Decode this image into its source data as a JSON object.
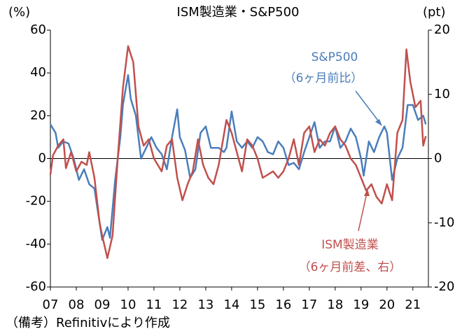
{
  "chart_data": {
    "type": "line",
    "title": "ISM製造業・S&P500",
    "y_label": "(%)",
    "y2_label": "(pt)",
    "footnote": "（備考）Refinitivにより作成",
    "annotations": [
      "S&P500",
      "（6ヶ月前比）",
      "ISM製造業",
      "（6ヶ月前差、右）"
    ],
    "xlim": [
      2007,
      2021.6
    ],
    "xticks": [
      {
        "value": 2007,
        "label": "07"
      },
      {
        "value": 2008,
        "label": "08"
      },
      {
        "value": 2009,
        "label": "09"
      },
      {
        "value": 2010,
        "label": "10"
      },
      {
        "value": 2011,
        "label": "11"
      },
      {
        "value": 2012,
        "label": "12"
      },
      {
        "value": 2013,
        "label": "13"
      },
      {
        "value": 2014,
        "label": "14"
      },
      {
        "value": 2015,
        "label": "15"
      },
      {
        "value": 2016,
        "label": "16"
      },
      {
        "value": 2017,
        "label": "17"
      },
      {
        "value": 2018,
        "label": "18"
      },
      {
        "value": 2019,
        "label": "19"
      },
      {
        "value": 2020,
        "label": "20"
      },
      {
        "value": 2021,
        "label": "21"
      }
    ],
    "ylim": [
      -60,
      60
    ],
    "yticks": [
      60,
      40,
      20,
      0,
      -20,
      -40,
      -60
    ],
    "y2lim": [
      -20,
      20
    ],
    "y2ticks": [
      20,
      10,
      0,
      -10,
      -20
    ],
    "series": [
      {
        "name": "S&P500",
        "color": "#4a7ebb",
        "x": [
          2007.0,
          2007.2,
          2007.3,
          2007.5,
          2007.7,
          2007.9,
          2008.1,
          2008.3,
          2008.5,
          2008.7,
          2008.9,
          2009.0,
          2009.2,
          2009.3,
          2009.5,
          2009.7,
          2009.8,
          2010.0,
          2010.1,
          2010.3,
          2010.5,
          2010.7,
          2010.9,
          2011.1,
          2011.3,
          2011.5,
          2011.7,
          2011.9,
          2012.0,
          2012.2,
          2012.4,
          2012.6,
          2012.8,
          2013.0,
          2013.2,
          2013.5,
          2013.7,
          2013.8,
          2014.0,
          2014.2,
          2014.4,
          2014.6,
          2014.8,
          2015.0,
          2015.2,
          2015.4,
          2015.6,
          2015.8,
          2016.0,
          2016.2,
          2016.4,
          2016.6,
          2016.8,
          2017.0,
          2017.2,
          2017.4,
          2017.6,
          2017.8,
          2018.0,
          2018.2,
          2018.4,
          2018.6,
          2018.8,
          2019.0,
          2019.1,
          2019.3,
          2019.5,
          2019.7,
          2019.9,
          2020.0,
          2020.2,
          2020.4,
          2020.6,
          2020.8,
          2021.0,
          2021.2,
          2021.4,
          2021.5
        ],
        "values": [
          16,
          12,
          5,
          8,
          7,
          0,
          -10,
          -5,
          -12,
          -14,
          -30,
          -38,
          -32,
          -37,
          -10,
          10,
          25,
          39,
          28,
          20,
          0,
          5,
          10,
          5,
          2,
          -5,
          10,
          23,
          10,
          4,
          -9,
          -5,
          12,
          15,
          5,
          5,
          3,
          5,
          22,
          8,
          5,
          8,
          5,
          10,
          8,
          3,
          2,
          8,
          5,
          -3,
          -2,
          -5,
          3,
          10,
          17,
          5,
          8,
          8,
          15,
          5,
          8,
          14,
          10,
          0,
          -8,
          8,
          3,
          10,
          15,
          12,
          -10,
          0,
          5,
          25,
          25,
          18,
          20,
          16
        ]
      },
      {
        "name": "ISM製造業",
        "color": "#c0504d",
        "axis": "y2",
        "x": [
          2007.0,
          2007.1,
          2007.3,
          2007.5,
          2007.6,
          2007.8,
          2008.0,
          2008.2,
          2008.4,
          2008.5,
          2008.7,
          2008.9,
          2009.0,
          2009.2,
          2009.4,
          2009.6,
          2009.8,
          2010.0,
          2010.2,
          2010.4,
          2010.6,
          2010.8,
          2011.0,
          2011.3,
          2011.5,
          2011.7,
          2011.9,
          2012.1,
          2012.3,
          2012.5,
          2012.7,
          2012.9,
          2013.1,
          2013.3,
          2013.5,
          2013.8,
          2014.0,
          2014.2,
          2014.4,
          2014.6,
          2014.8,
          2015.0,
          2015.2,
          2015.4,
          2015.6,
          2015.8,
          2016.0,
          2016.2,
          2016.4,
          2016.6,
          2016.8,
          2017.0,
          2017.2,
          2017.4,
          2017.6,
          2017.8,
          2018.0,
          2018.2,
          2018.4,
          2018.6,
          2018.8,
          2019.0,
          2019.2,
          2019.4,
          2019.6,
          2019.8,
          2020.0,
          2020.2,
          2020.4,
          2020.6,
          2020.75,
          2020.9,
          2021.1,
          2021.3,
          2021.4,
          2021.5
        ],
        "values": [
          -2.5,
          0.5,
          2,
          3,
          -1.5,
          1,
          -2,
          -0.5,
          -1,
          1,
          -3,
          -10,
          -12,
          -15.5,
          -12,
          0,
          11,
          17.5,
          15,
          5,
          2,
          3,
          0,
          -2,
          2,
          3,
          -3,
          -6.5,
          -4,
          -2,
          3,
          -1,
          -3,
          -4,
          -1,
          6,
          4,
          1,
          -2,
          3,
          2,
          0,
          -3,
          -2.5,
          -2,
          -3,
          -2,
          0,
          3,
          -1,
          4,
          5,
          1,
          3,
          2,
          4,
          5,
          3,
          2,
          0,
          -1,
          -3,
          -5,
          -4,
          -6,
          -7,
          -4,
          -6.5,
          4,
          6,
          17,
          12,
          8,
          9,
          2,
          3.5
        ]
      }
    ]
  }
}
